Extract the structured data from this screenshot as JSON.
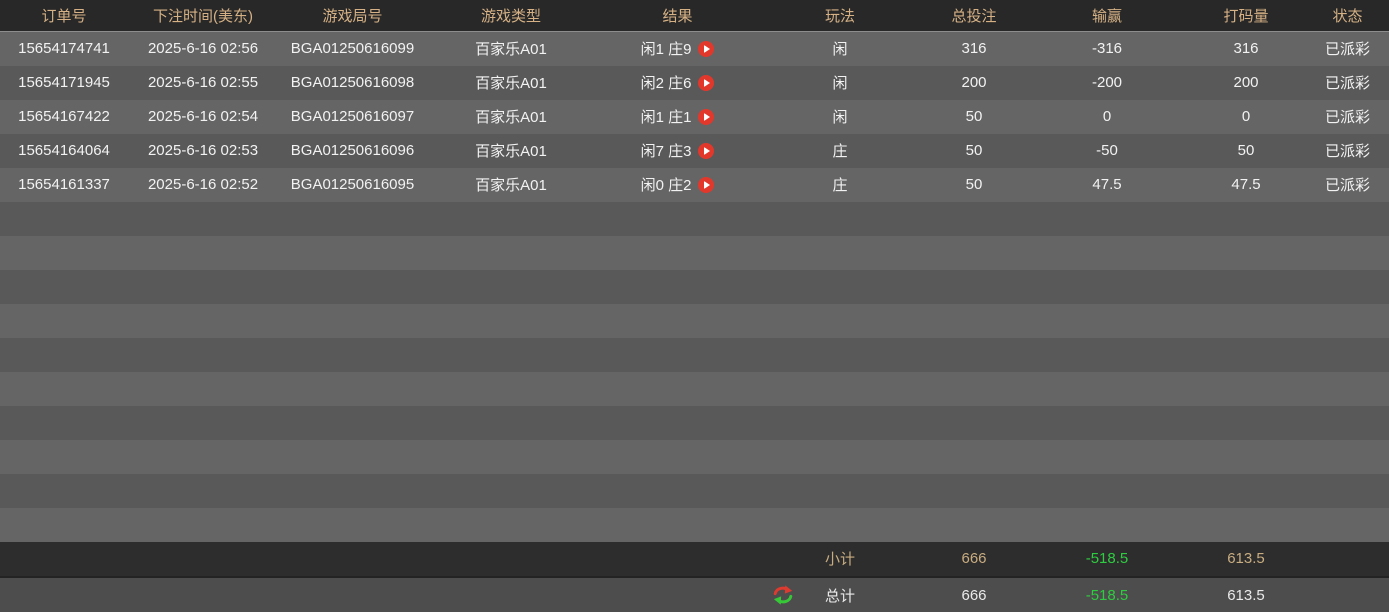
{
  "colors": {
    "header_text": "#d5b185",
    "row_light": "#656565",
    "row_dark": "#595959",
    "loss_green": "#2ecc40",
    "win_red": "#cc3333",
    "subtotal_text": "#c9ad80",
    "play_button_red": "#e2382c"
  },
  "table": {
    "headers": [
      "订单号",
      "下注时间(美东)",
      "游戏局号",
      "游戏类型",
      "结果",
      "玩法",
      "总投注",
      "输赢",
      "打码量",
      "状态"
    ],
    "rows": [
      {
        "order_no": "15654174741",
        "bet_time": "2025-6-16 02:56",
        "round_no": "BGA01250616099",
        "game_type": "百家乐A01",
        "result": "闲1 庄9",
        "play": "闲",
        "total_bet": "316",
        "win_loss": "-316",
        "win_loss_color": "green",
        "turnover": "316",
        "status": "已派彩"
      },
      {
        "order_no": "15654171945",
        "bet_time": "2025-6-16 02:55",
        "round_no": "BGA01250616098",
        "game_type": "百家乐A01",
        "result": "闲2 庄6",
        "play": "闲",
        "total_bet": "200",
        "win_loss": "-200",
        "win_loss_color": "green",
        "turnover": "200",
        "status": "已派彩"
      },
      {
        "order_no": "15654167422",
        "bet_time": "2025-6-16 02:54",
        "round_no": "BGA01250616097",
        "game_type": "百家乐A01",
        "result": "闲1 庄1",
        "play": "闲",
        "total_bet": "50",
        "win_loss": "0",
        "win_loss_color": "red",
        "turnover": "0",
        "status": "已派彩"
      },
      {
        "order_no": "15654164064",
        "bet_time": "2025-6-16 02:53",
        "round_no": "BGA01250616096",
        "game_type": "百家乐A01",
        "result": "闲7 庄3",
        "play": "庄",
        "total_bet": "50",
        "win_loss": "-50",
        "win_loss_color": "green",
        "turnover": "50",
        "status": "已派彩"
      },
      {
        "order_no": "15654161337",
        "bet_time": "2025-6-16 02:52",
        "round_no": "BGA01250616095",
        "game_type": "百家乐A01",
        "result": "闲0 庄2",
        "play": "庄",
        "total_bet": "50",
        "win_loss": "47.5",
        "win_loss_color": "red",
        "turnover": "47.5",
        "status": "已派彩"
      }
    ],
    "empty_row_count": 10,
    "subtotal": {
      "label": "小计",
      "total_bet": "666",
      "win_loss": "-518.5",
      "turnover": "613.5"
    },
    "total": {
      "label": "总计",
      "total_bet": "666",
      "win_loss": "-518.5",
      "turnover": "613.5"
    }
  }
}
